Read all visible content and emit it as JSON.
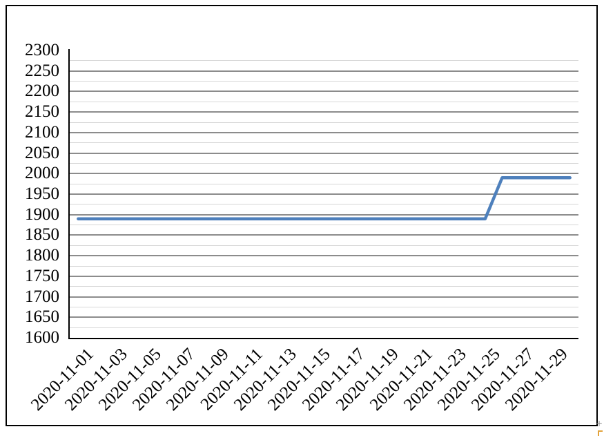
{
  "chart_data": {
    "type": "line",
    "title": "",
    "xlabel": "",
    "ylabel": "",
    "legend": "none",
    "x": [
      "2020-11-01",
      "2020-11-02",
      "2020-11-03",
      "2020-11-04",
      "2020-11-05",
      "2020-11-06",
      "2020-11-07",
      "2020-11-08",
      "2020-11-09",
      "2020-11-10",
      "2020-11-11",
      "2020-11-12",
      "2020-11-13",
      "2020-11-14",
      "2020-11-15",
      "2020-11-16",
      "2020-11-17",
      "2020-11-18",
      "2020-11-19",
      "2020-11-20",
      "2020-11-21",
      "2020-11-22",
      "2020-11-23",
      "2020-11-24",
      "2020-11-25",
      "2020-11-26",
      "2020-11-27",
      "2020-11-28",
      "2020-11-29",
      "2020-11-30"
    ],
    "values": [
      1890,
      1890,
      1890,
      1890,
      1890,
      1890,
      1890,
      1890,
      1890,
      1890,
      1890,
      1890,
      1890,
      1890,
      1890,
      1890,
      1890,
      1890,
      1890,
      1890,
      1890,
      1890,
      1890,
      1890,
      1890,
      1990,
      1990,
      1990,
      1990,
      1990
    ],
    "x_tick_labels": [
      "2020-11-01",
      "2020-11-03",
      "2020-11-05",
      "2020-11-07",
      "2020-11-09",
      "2020-11-11",
      "2020-11-13",
      "2020-11-15",
      "2020-11-17",
      "2020-11-19",
      "2020-11-21",
      "2020-11-23",
      "2020-11-25",
      "2020-11-27",
      "2020-11-29"
    ],
    "y_ticks": [
      2300,
      2250,
      2200,
      2150,
      2100,
      2050,
      2000,
      1950,
      1900,
      1850,
      1800,
      1750,
      1700,
      1650,
      1600
    ],
    "ylim": [
      1600,
      2300
    ],
    "grid": {
      "orientation": "horizontal",
      "major_step": 50,
      "minor_step": 25
    },
    "series_color": "#4e80bc",
    "line_width": 4.5
  },
  "colors": {
    "background": "#ffffff",
    "frame_border": "#000000",
    "axis": "#000000",
    "major_gridline": "#8c8c8c",
    "minor_gridline": "#d6d6d6",
    "label_text": "#000000"
  },
  "decorations": {
    "resize_mark": "+",
    "resize_mark_color": "#8a8a8a",
    "corner_mark_color": "#e2a33c"
  }
}
